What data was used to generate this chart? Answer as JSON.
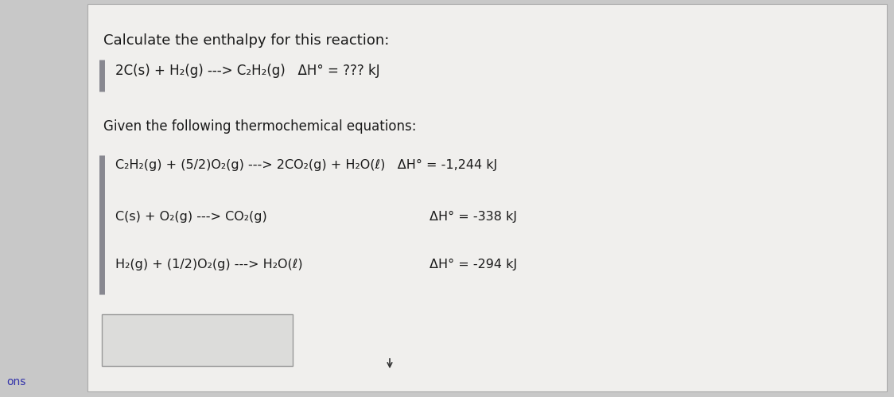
{
  "title": "Calculate the enthalpy for this reaction:",
  "main_reaction": "2C(s) + H₂(g) ---> C₂H₂(g)   ΔH° = ??? kJ",
  "given_label": "Given the following thermochemical equations:",
  "eq1_left": "C₂H₂(g) + (5/2)O₂(g) ---> 2CO₂(g) + H₂O(ℓ)   ΔH° = -1,244 kJ",
  "eq2_left": "C(s) + O₂(g) ---> CO₂(g)",
  "eq2_right": "ΔH° = -338 kJ",
  "eq3_left": "H₂(g) + (1/2)O₂(g) ---> H₂O(ℓ)",
  "eq3_right": "ΔH° = -294 kJ",
  "left_panel_color": "#c8c8c8",
  "right_panel_color": "#e0e0de",
  "white_panel_color": "#f0efed",
  "text_color": "#1a1a1a",
  "bar_color": "#888890",
  "answer_box_edge": "#999999",
  "answer_box_face": "#dcdcda",
  "outer_border_color": "#aaaaaa",
  "font_size_title": 13,
  "font_size_body": 12,
  "font_size_eq": 11.5,
  "ons_color": "#3333aa"
}
